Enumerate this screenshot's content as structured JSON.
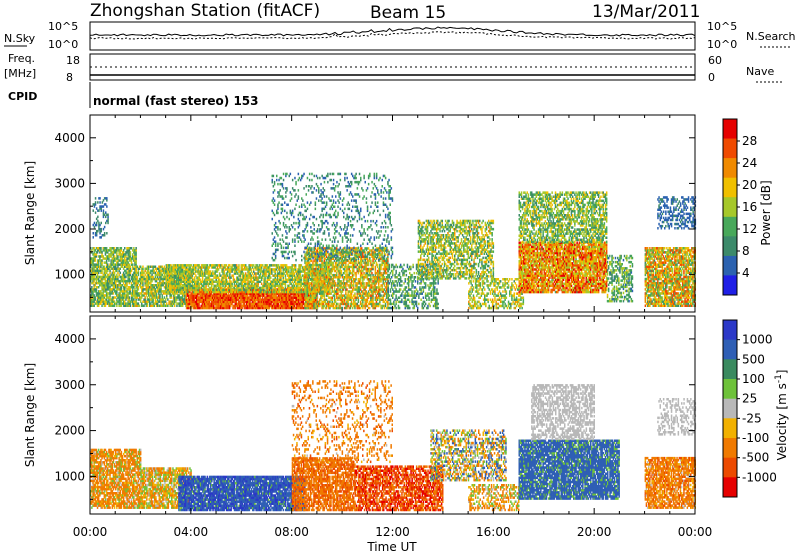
{
  "header": {
    "title": "Zhongshan Station (fitACF)",
    "beam": "Beam 15",
    "date": "13/Mar/2011"
  },
  "status_panel": {
    "nsky_label": "N.Sky",
    "nsearch_label": "N.Search",
    "noise_ticks": [
      "10^5",
      "10^0"
    ],
    "freq_label": "Freq.",
    "freq_unit": "[MHz]",
    "freq_ticks": [
      "18",
      "8"
    ],
    "nave_label": "Nave",
    "nave_ticks": [
      "60",
      "0"
    ],
    "cpid_label": "CPID",
    "cpid_text": "normal (fast stereo) 153"
  },
  "colors": {
    "power": [
      "#1f1fe6",
      "#2b62b0",
      "#3c8a6a",
      "#48a85a",
      "#a6c82a",
      "#f0c000",
      "#f08a00",
      "#ef4a00",
      "#e60000"
    ],
    "velocity": [
      "#2b38c8",
      "#2f5fb5",
      "#3a8a5f",
      "#6ec23a",
      "#b8b8b8",
      "#f2b100",
      "#f07a00",
      "#ec4a00",
      "#e60000"
    ]
  },
  "chart_data": [
    {
      "type": "heatmap",
      "name": "Power",
      "xlabel": "Time UT",
      "ylabel": "Slant Range [km]",
      "x_ticks": [
        "00:00",
        "04:00",
        "08:00",
        "12:00",
        "16:00",
        "20:00",
        "00:00"
      ],
      "xlim_hours": [
        0,
        24
      ],
      "ylim": [
        180,
        4500
      ],
      "y_ticks": [
        1000,
        2000,
        3000,
        4000
      ],
      "colorbar": {
        "label": "Power [dB]",
        "ticks": [
          4,
          8,
          12,
          16,
          20,
          24,
          28
        ],
        "range": [
          0,
          32
        ]
      },
      "regions": [
        {
          "t0": 0.0,
          "t1": 1.8,
          "r0": 300,
          "r1": 1600,
          "v0": 8,
          "v1": 20,
          "d": 0.75
        },
        {
          "t0": 0.1,
          "t1": 0.7,
          "r0": 1800,
          "r1": 2700,
          "v0": 4,
          "v1": 10,
          "d": 0.3
        },
        {
          "t0": 1.8,
          "t1": 3.8,
          "r0": 300,
          "r1": 1200,
          "v0": 8,
          "v1": 22,
          "d": 0.75
        },
        {
          "t0": 3.8,
          "t1": 9.0,
          "r0": 250,
          "r1": 700,
          "v0": 22,
          "v1": 31,
          "d": 0.95
        },
        {
          "t0": 3.0,
          "t1": 9.5,
          "r0": 600,
          "r1": 1200,
          "v0": 10,
          "v1": 22,
          "d": 0.75
        },
        {
          "t0": 8.5,
          "t1": 11.8,
          "r0": 250,
          "r1": 1600,
          "v0": 10,
          "v1": 26,
          "d": 0.7
        },
        {
          "t0": 7.2,
          "t1": 12.0,
          "r0": 1300,
          "r1": 3200,
          "v0": 4,
          "v1": 14,
          "d": 0.18
        },
        {
          "t0": 11.8,
          "t1": 13.8,
          "r0": 250,
          "r1": 1200,
          "v0": 6,
          "v1": 16,
          "d": 0.45
        },
        {
          "t0": 13.0,
          "t1": 16.0,
          "r0": 900,
          "r1": 2200,
          "v0": 8,
          "v1": 22,
          "d": 0.55
        },
        {
          "t0": 15.0,
          "t1": 17.2,
          "r0": 250,
          "r1": 900,
          "v0": 10,
          "v1": 22,
          "d": 0.45
        },
        {
          "t0": 17.0,
          "t1": 20.5,
          "r0": 600,
          "r1": 1700,
          "v0": 14,
          "v1": 31,
          "d": 0.85
        },
        {
          "t0": 17.0,
          "t1": 20.5,
          "r0": 1700,
          "r1": 2800,
          "v0": 8,
          "v1": 20,
          "d": 0.6
        },
        {
          "t0": 20.5,
          "t1": 21.5,
          "r0": 400,
          "r1": 1400,
          "v0": 6,
          "v1": 18,
          "d": 0.45
        },
        {
          "t0": 22.0,
          "t1": 24.0,
          "r0": 300,
          "r1": 1600,
          "v0": 10,
          "v1": 28,
          "d": 0.8
        },
        {
          "t0": 22.5,
          "t1": 24.0,
          "r0": 2000,
          "r1": 2700,
          "v0": 4,
          "v1": 8,
          "d": 0.4
        }
      ]
    },
    {
      "type": "heatmap",
      "name": "Velocity",
      "xlabel": "Time UT",
      "ylabel": "Slant Range [km]",
      "x_ticks": [
        "00:00",
        "04:00",
        "08:00",
        "12:00",
        "16:00",
        "20:00",
        "00:00"
      ],
      "xlim_hours": [
        0,
        24
      ],
      "ylim": [
        180,
        4500
      ],
      "y_ticks": [
        1000,
        2000,
        3000,
        4000
      ],
      "colorbar": {
        "label": "Velocity [m s^-1]",
        "ticks": [
          "1000",
          "500",
          "100",
          "25",
          "-25",
          "-100",
          "-500",
          "-1000"
        ],
        "levels": [
          1000,
          500,
          100,
          25,
          -25,
          -100,
          -500,
          -1000
        ]
      },
      "regions": [
        {
          "t0": 0.0,
          "t1": 2.0,
          "r0": 300,
          "r1": 1600,
          "v0": -500,
          "v1": 100,
          "d": 0.75
        },
        {
          "t0": 2.0,
          "t1": 4.0,
          "r0": 300,
          "r1": 1200,
          "v0": -200,
          "v1": 100,
          "d": 0.75
        },
        {
          "t0": 3.5,
          "t1": 8.5,
          "r0": 250,
          "r1": 1000,
          "v0": 60,
          "v1": 700,
          "d": 0.9
        },
        {
          "t0": 8.0,
          "t1": 10.5,
          "r0": 250,
          "r1": 1400,
          "v0": -700,
          "v1": -100,
          "d": 0.75
        },
        {
          "t0": 10.5,
          "t1": 14.0,
          "r0": 250,
          "r1": 1200,
          "v0": -1000,
          "v1": -300,
          "d": 0.7
        },
        {
          "t0": 8.0,
          "t1": 12.0,
          "r0": 1300,
          "r1": 3100,
          "v0": -600,
          "v1": 0,
          "d": 0.2
        },
        {
          "t0": 13.5,
          "t1": 16.5,
          "r0": 900,
          "r1": 2000,
          "v0": -200,
          "v1": 200,
          "d": 0.5
        },
        {
          "t0": 15.0,
          "t1": 17.0,
          "r0": 250,
          "r1": 800,
          "v0": -300,
          "v1": 100,
          "d": 0.45
        },
        {
          "t0": 17.0,
          "t1": 21.0,
          "r0": 500,
          "r1": 1800,
          "v0": 60,
          "v1": 300,
          "d": 0.85
        },
        {
          "t0": 17.5,
          "t1": 20.0,
          "r0": 1800,
          "r1": 3000,
          "v0": -20,
          "v1": 20,
          "d": 0.55
        },
        {
          "t0": 22.0,
          "t1": 24.0,
          "r0": 300,
          "r1": 1400,
          "v0": -600,
          "v1": 0,
          "d": 0.75
        },
        {
          "t0": 22.5,
          "t1": 24.0,
          "r0": 1900,
          "r1": 2700,
          "v0": -20,
          "v1": 20,
          "d": 0.35
        }
      ]
    }
  ]
}
